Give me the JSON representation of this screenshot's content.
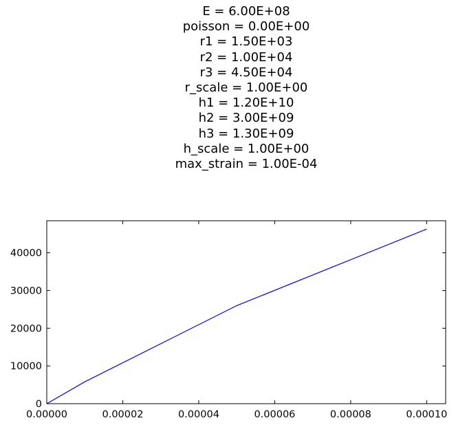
{
  "title_lines": [
    "E = 6.00E+08",
    "poisson = 0.00E+00",
    "r1 = 1.50E+03",
    "r2 = 1.00E+04",
    "r3 = 4.50E+04",
    "r_scale = 1.00E+00",
    "h1 = 1.20E+10",
    "h2 = 3.00E+09",
    "h3 = 1.30E+09",
    "h_scale = 1.00E+00",
    "max_strain = 1.00E-04"
  ],
  "chart_data": {
    "type": "line",
    "title": "E = 6.00E+08\npoisson = 0.00E+00\nr1 = 1.50E+03\nr2 = 1.00E+04\nr3 = 4.50E+04\nr_scale = 1.00E+00\nh1 = 1.20E+10\nh2 = 3.00E+09\nh3 = 1.30E+09\nh_scale = 1.00E+00\nmax_strain = 1.00E-04",
    "xlabel": "",
    "ylabel": "",
    "xlim": [
      0,
      0.000105
    ],
    "ylim": [
      0,
      48500
    ],
    "x_ticks": [
      0,
      2e-05,
      4e-05,
      6e-05,
      8e-05,
      0.0001
    ],
    "x_tick_labels": [
      "0.00000",
      "0.00002",
      "0.00004",
      "0.00006",
      "0.00008",
      "0.00010"
    ],
    "y_ticks": [
      0,
      10000,
      20000,
      30000,
      40000
    ],
    "y_tick_labels": [
      "0",
      "10000",
      "20000",
      "30000",
      "40000"
    ],
    "grid": false,
    "series": [
      {
        "color": "#0000ff",
        "x": [
          0,
          1e-05,
          5e-05,
          0.0001
        ],
        "y": [
          0,
          5800,
          26000,
          46300
        ]
      }
    ]
  }
}
